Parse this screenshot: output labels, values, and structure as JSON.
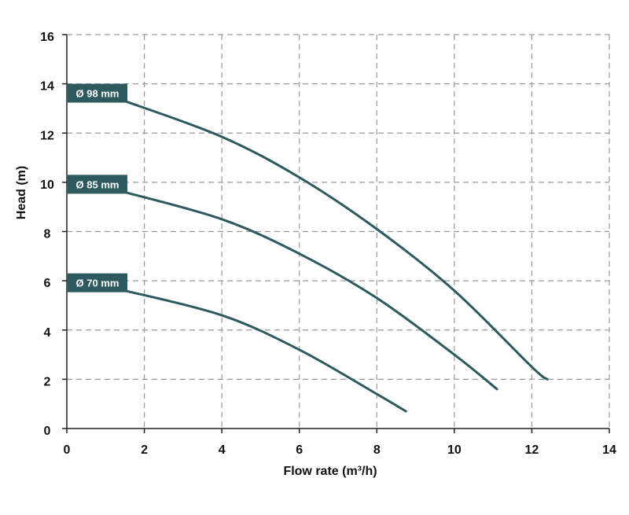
{
  "chart_data": {
    "type": "line",
    "title": "",
    "xlabel": "Flow rate (m³/h)",
    "ylabel": "Head (m)",
    "xlim": [
      0,
      14
    ],
    "ylim": [
      0,
      16
    ],
    "xticks": [
      0,
      2,
      4,
      6,
      8,
      10,
      12,
      14
    ],
    "yticks": [
      0,
      2,
      4,
      6,
      8,
      10,
      12,
      14,
      16
    ],
    "grid": true,
    "line_color": "#2d5a5e",
    "series": [
      {
        "name": "Ø 98 mm",
        "x": [
          1.5,
          4,
          6,
          8,
          10,
          12,
          12.4
        ],
        "y": [
          13.3,
          11.85,
          10.2,
          8.1,
          5.6,
          2.5,
          2.0
        ]
      },
      {
        "name": "Ø 85 mm",
        "x": [
          1.5,
          4,
          6,
          8,
          10,
          11.1
        ],
        "y": [
          9.6,
          8.5,
          7.1,
          5.3,
          3.0,
          1.6
        ]
      },
      {
        "name": "Ø 70 mm",
        "x": [
          1.5,
          4,
          6,
          8,
          8.75
        ],
        "y": [
          5.6,
          4.6,
          3.2,
          1.4,
          0.7
        ]
      }
    ]
  }
}
